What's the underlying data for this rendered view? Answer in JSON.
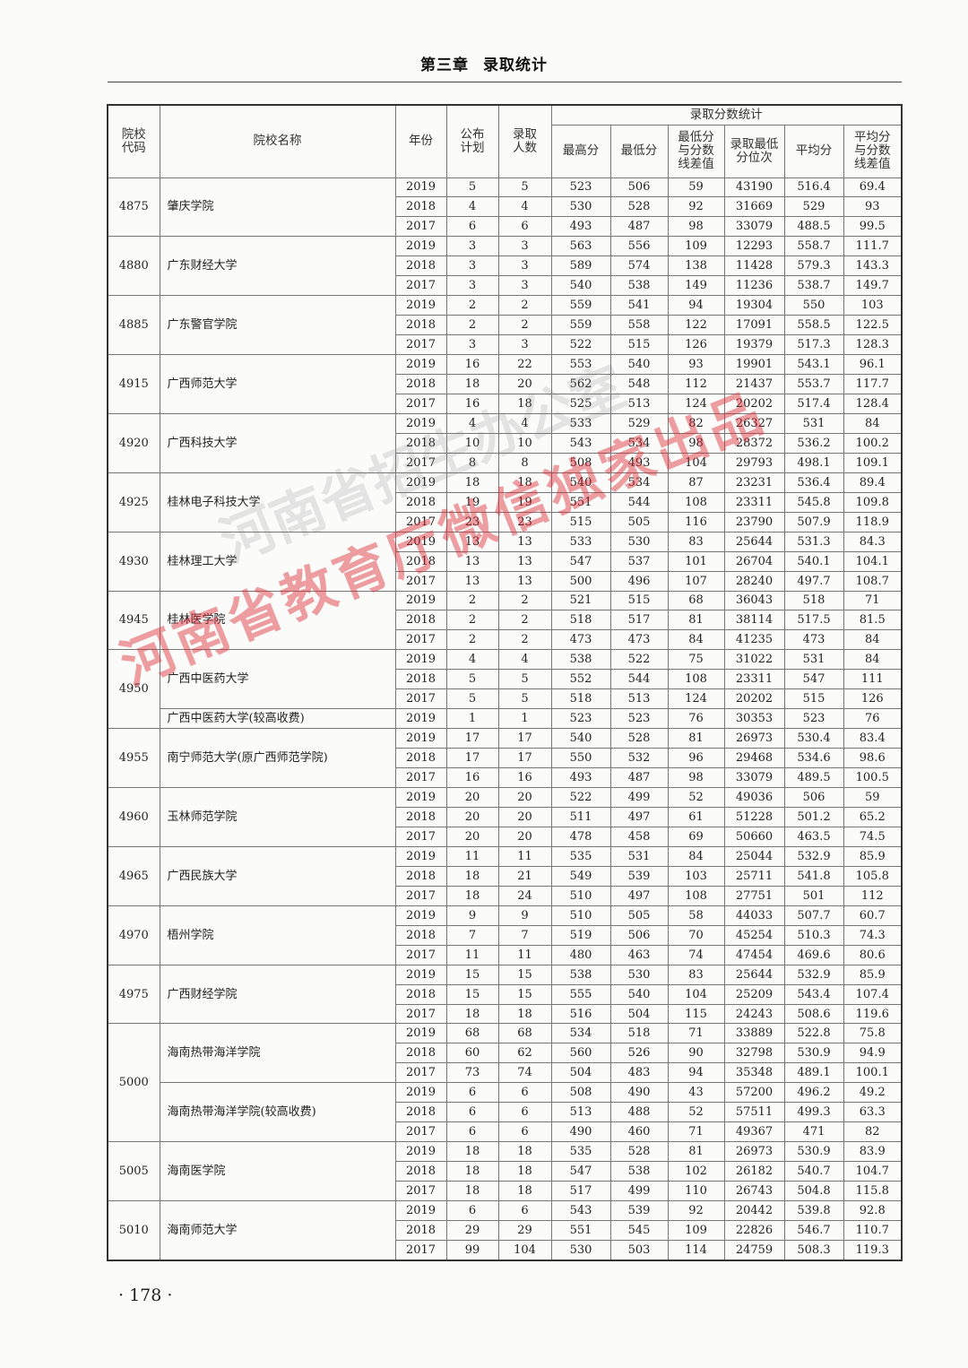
{
  "header": {
    "chapter": "第三章",
    "title": "录取统计"
  },
  "table": {
    "headers": {
      "code": "院校代码",
      "name": "院校名称",
      "year": "年份",
      "plan": "公布计划",
      "admitted": "录取人数",
      "score_stats": "录取分数统计",
      "max": "最高分",
      "min": "最低分",
      "min_diff": "最低分与分数线差值",
      "min_rank": "录取最低分位次",
      "avg": "平均分",
      "avg_diff": "平均分与分数线差值"
    },
    "groups": [
      {
        "code": "4875",
        "schools": [
          {
            "name": "肇庆学院",
            "rows": [
              [
                "2019",
                "5",
                "5",
                "523",
                "506",
                "59",
                "43190",
                "516.4",
                "69.4"
              ],
              [
                "2018",
                "4",
                "4",
                "530",
                "528",
                "92",
                "31669",
                "529",
                "93"
              ],
              [
                "2017",
                "6",
                "6",
                "493",
                "487",
                "98",
                "33079",
                "488.5",
                "99.5"
              ]
            ]
          }
        ]
      },
      {
        "code": "4880",
        "schools": [
          {
            "name": "广东财经大学",
            "rows": [
              [
                "2019",
                "3",
                "3",
                "563",
                "556",
                "109",
                "12293",
                "558.7",
                "111.7"
              ],
              [
                "2018",
                "3",
                "3",
                "589",
                "574",
                "138",
                "11428",
                "579.3",
                "143.3"
              ],
              [
                "2017",
                "3",
                "3",
                "540",
                "538",
                "149",
                "11236",
                "538.7",
                "149.7"
              ]
            ]
          }
        ]
      },
      {
        "code": "4885",
        "schools": [
          {
            "name": "广东警官学院",
            "rows": [
              [
                "2019",
                "2",
                "2",
                "559",
                "541",
                "94",
                "19304",
                "550",
                "103"
              ],
              [
                "2018",
                "2",
                "2",
                "559",
                "558",
                "122",
                "17091",
                "558.5",
                "122.5"
              ],
              [
                "2017",
                "3",
                "3",
                "522",
                "515",
                "126",
                "19379",
                "517.3",
                "128.3"
              ]
            ]
          }
        ]
      },
      {
        "code": "4915",
        "schools": [
          {
            "name": "广西师范大学",
            "rows": [
              [
                "2019",
                "16",
                "22",
                "553",
                "540",
                "93",
                "19901",
                "543.1",
                "96.1"
              ],
              [
                "2018",
                "18",
                "20",
                "562",
                "548",
                "112",
                "21437",
                "553.7",
                "117.7"
              ],
              [
                "2017",
                "16",
                "18",
                "525",
                "513",
                "124",
                "20202",
                "517.4",
                "128.4"
              ]
            ]
          }
        ]
      },
      {
        "code": "4920",
        "schools": [
          {
            "name": "广西科技大学",
            "rows": [
              [
                "2019",
                "4",
                "4",
                "533",
                "529",
                "82",
                "26327",
                "531",
                "84"
              ],
              [
                "2018",
                "10",
                "10",
                "543",
                "534",
                "98",
                "28372",
                "536.2",
                "100.2"
              ],
              [
                "2017",
                "8",
                "8",
                "508",
                "493",
                "104",
                "29793",
                "498.1",
                "109.1"
              ]
            ]
          }
        ]
      },
      {
        "code": "4925",
        "schools": [
          {
            "name": "桂林电子科技大学",
            "rows": [
              [
                "2019",
                "18",
                "18",
                "540",
                "534",
                "87",
                "23231",
                "536.4",
                "89.4"
              ],
              [
                "2018",
                "19",
                "19",
                "551",
                "544",
                "108",
                "23311",
                "545.8",
                "109.8"
              ],
              [
                "2017",
                "23",
                "23",
                "515",
                "505",
                "116",
                "23790",
                "507.9",
                "118.9"
              ]
            ]
          }
        ]
      },
      {
        "code": "4930",
        "schools": [
          {
            "name": "桂林理工大学",
            "rows": [
              [
                "2019",
                "13",
                "13",
                "533",
                "530",
                "83",
                "25644",
                "531.3",
                "84.3"
              ],
              [
                "2018",
                "13",
                "13",
                "547",
                "537",
                "101",
                "26704",
                "540.1",
                "104.1"
              ],
              [
                "2017",
                "13",
                "13",
                "500",
                "496",
                "107",
                "28240",
                "497.7",
                "108.7"
              ]
            ]
          }
        ]
      },
      {
        "code": "4945",
        "schools": [
          {
            "name": "桂林医学院",
            "rows": [
              [
                "2019",
                "2",
                "2",
                "521",
                "515",
                "68",
                "36043",
                "518",
                "71"
              ],
              [
                "2018",
                "2",
                "2",
                "518",
                "517",
                "81",
                "38114",
                "517.5",
                "81.5"
              ],
              [
                "2017",
                "2",
                "2",
                "473",
                "473",
                "84",
                "41235",
                "473",
                "84"
              ]
            ]
          }
        ]
      },
      {
        "code": "4950",
        "schools": [
          {
            "name": "广西中医药大学",
            "rows": [
              [
                "2019",
                "4",
                "4",
                "538",
                "522",
                "75",
                "31022",
                "531",
                "84"
              ],
              [
                "2018",
                "5",
                "5",
                "552",
                "544",
                "108",
                "23311",
                "547",
                "111"
              ],
              [
                "2017",
                "5",
                "5",
                "518",
                "513",
                "124",
                "20202",
                "515",
                "126"
              ]
            ]
          },
          {
            "name": "广西中医药大学(较高收费)",
            "rows": [
              [
                "2019",
                "1",
                "1",
                "523",
                "523",
                "76",
                "30353",
                "523",
                "76"
              ]
            ]
          }
        ]
      },
      {
        "code": "4955",
        "schools": [
          {
            "name": "南宁师范大学(原广西师范学院)",
            "rows": [
              [
                "2019",
                "17",
                "17",
                "540",
                "528",
                "81",
                "26973",
                "530.4",
                "83.4"
              ],
              [
                "2018",
                "17",
                "17",
                "550",
                "532",
                "96",
                "29468",
                "534.6",
                "98.6"
              ],
              [
                "2017",
                "16",
                "16",
                "493",
                "487",
                "98",
                "33079",
                "489.5",
                "100.5"
              ]
            ]
          }
        ]
      },
      {
        "code": "4960",
        "schools": [
          {
            "name": "玉林师范学院",
            "rows": [
              [
                "2019",
                "20",
                "20",
                "522",
                "499",
                "52",
                "49036",
                "506",
                "59"
              ],
              [
                "2018",
                "20",
                "20",
                "511",
                "497",
                "61",
                "51228",
                "501.2",
                "65.2"
              ],
              [
                "2017",
                "20",
                "20",
                "478",
                "458",
                "69",
                "50660",
                "463.5",
                "74.5"
              ]
            ]
          }
        ]
      },
      {
        "code": "4965",
        "schools": [
          {
            "name": "广西民族大学",
            "rows": [
              [
                "2019",
                "11",
                "11",
                "535",
                "531",
                "84",
                "25044",
                "532.9",
                "85.9"
              ],
              [
                "2018",
                "18",
                "21",
                "549",
                "539",
                "103",
                "25711",
                "541.8",
                "105.8"
              ],
              [
                "2017",
                "18",
                "24",
                "510",
                "497",
                "108",
                "27751",
                "501",
                "112"
              ]
            ]
          }
        ]
      },
      {
        "code": "4970",
        "schools": [
          {
            "name": "梧州学院",
            "rows": [
              [
                "2019",
                "9",
                "9",
                "510",
                "505",
                "58",
                "44033",
                "507.7",
                "60.7"
              ],
              [
                "2018",
                "7",
                "7",
                "519",
                "506",
                "70",
                "45254",
                "510.3",
                "74.3"
              ],
              [
                "2017",
                "11",
                "11",
                "480",
                "463",
                "74",
                "47454",
                "469.6",
                "80.6"
              ]
            ]
          }
        ]
      },
      {
        "code": "4975",
        "schools": [
          {
            "name": "广西财经学院",
            "rows": [
              [
                "2019",
                "15",
                "15",
                "538",
                "530",
                "83",
                "25644",
                "532.9",
                "85.9"
              ],
              [
                "2018",
                "15",
                "15",
                "555",
                "540",
                "104",
                "25209",
                "543.4",
                "107.4"
              ],
              [
                "2017",
                "18",
                "18",
                "516",
                "504",
                "115",
                "24243",
                "508.6",
                "119.6"
              ]
            ]
          }
        ]
      },
      {
        "code": "5000",
        "schools": [
          {
            "name": "海南热带海洋学院",
            "rows": [
              [
                "2019",
                "68",
                "68",
                "534",
                "518",
                "71",
                "33889",
                "522.8",
                "75.8"
              ],
              [
                "2018",
                "60",
                "62",
                "560",
                "526",
                "90",
                "32798",
                "530.9",
                "94.9"
              ],
              [
                "2017",
                "73",
                "74",
                "504",
                "483",
                "94",
                "35348",
                "489.1",
                "100.1"
              ]
            ]
          },
          {
            "name": "海南热带海洋学院(较高收费)",
            "rows": [
              [
                "2019",
                "6",
                "6",
                "508",
                "490",
                "43",
                "57200",
                "496.2",
                "49.2"
              ],
              [
                "2018",
                "6",
                "6",
                "513",
                "488",
                "52",
                "57511",
                "499.3",
                "63.3"
              ],
              [
                "2017",
                "6",
                "6",
                "490",
                "460",
                "71",
                "49367",
                "471",
                "82"
              ]
            ]
          }
        ]
      },
      {
        "code": "5005",
        "schools": [
          {
            "name": "海南医学院",
            "rows": [
              [
                "2019",
                "18",
                "18",
                "535",
                "528",
                "81",
                "26973",
                "530.9",
                "83.9"
              ],
              [
                "2018",
                "18",
                "18",
                "547",
                "538",
                "102",
                "26182",
                "540.7",
                "104.7"
              ],
              [
                "2017",
                "18",
                "18",
                "517",
                "499",
                "110",
                "26743",
                "504.8",
                "115.8"
              ]
            ]
          }
        ]
      },
      {
        "code": "5010",
        "schools": [
          {
            "name": "海南师范大学",
            "rows": [
              [
                "2019",
                "6",
                "6",
                "543",
                "539",
                "92",
                "20442",
                "539.8",
                "92.8"
              ],
              [
                "2018",
                "29",
                "29",
                "551",
                "545",
                "109",
                "22826",
                "546.7",
                "110.7"
              ],
              [
                "2017",
                "99",
                "104",
                "530",
                "503",
                "114",
                "24759",
                "508.3",
                "119.3"
              ]
            ]
          }
        ]
      }
    ]
  },
  "page_number": "· 178 ·",
  "watermark": {
    "red": "河南省教育厅微信独家出品",
    "gray": "河南省招生办公室"
  },
  "colors": {
    "watermark_red": "#dc2832"
  }
}
